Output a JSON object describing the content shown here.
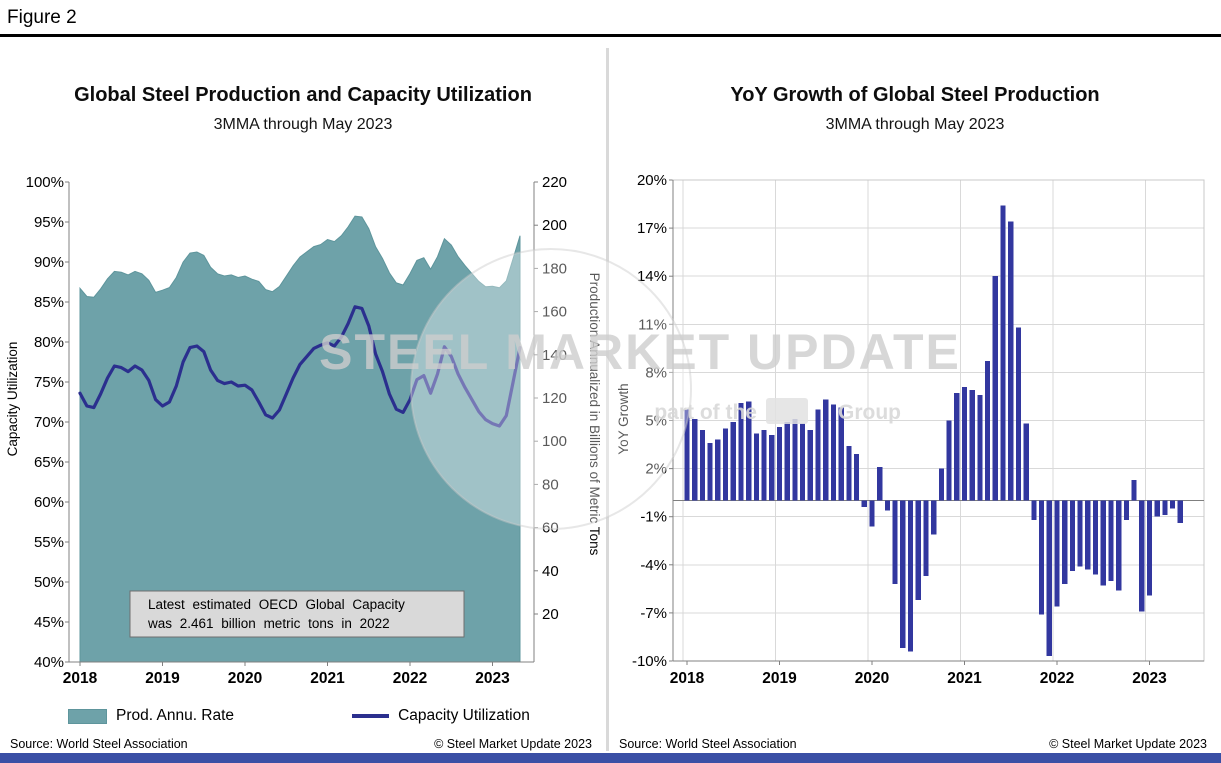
{
  "figure": {
    "label": "Figure 2"
  },
  "footer": {
    "source": "Source: World Steel Association",
    "copyright": "© Steel Market Update 2023"
  },
  "watermark": {
    "text": "STEEL MARKET UPDATE",
    "tagline_prefix": "part of the",
    "tagline_suffix": "Group"
  },
  "colors": {
    "area": "#6EA2A9",
    "area_edge": "#5E959C",
    "line": "#2B2F8E",
    "bar": "#32379F",
    "accent_bar": "#3A4FA5",
    "annotation_bg": "#D9D9D9",
    "annotation_border": "#6E6E6E",
    "grid": "#D9D9D9",
    "axis": "#808080",
    "divider": "#D9D9D9"
  },
  "chart_data": [
    {
      "type": "combo_area_line",
      "title": "Global Steel Production and Capacity Utilization",
      "subtitle": "3MMA through May 2023",
      "x_unit": "month",
      "x_start": "2018-01",
      "x_end": "2023-05",
      "x_tick_labels": [
        "2018",
        "2019",
        "2020",
        "2021",
        "2022",
        "2023"
      ],
      "left_axis": {
        "label": "Capacity Utilization",
        "min": 40,
        "max": 100,
        "tick_step_pct": 5,
        "tick_labels": [
          "100%",
          "95%",
          "90%",
          "85%",
          "80%",
          "75%",
          "70%",
          "65%",
          "60%",
          "55%",
          "50%",
          "45%",
          "40%"
        ]
      },
      "right_axis": {
        "label": "Production Annualized in Billions of Metric Tons",
        "min": 20,
        "max": 220,
        "tick_step": 20,
        "tick_labels": [
          "220",
          "200",
          "180",
          "160",
          "140",
          "120",
          "100",
          "80",
          "60",
          "40",
          "20"
        ]
      },
      "series": [
        {
          "name": "Prod. Annu. Rate",
          "type": "area",
          "axis": "right",
          "color": "#6EA2A9",
          "values": [
            170.8,
            167.0,
            166.6,
            170.5,
            175.2,
            178.6,
            178.2,
            177.0,
            178.6,
            177.5,
            174.5,
            168.9,
            169.9,
            171.1,
            175.8,
            182.9,
            187.1,
            187.6,
            186.0,
            180.5,
            177.5,
            176.5,
            177.0,
            175.8,
            176.5,
            175.0,
            174.0,
            170.2,
            169.2,
            171.6,
            176.4,
            181.2,
            185.3,
            187.7,
            190.1,
            191.0,
            193.4,
            192.4,
            195.1,
            199.2,
            204.2,
            203.8,
            198.4,
            190.0,
            184.6,
            177.9,
            173.3,
            172.3,
            177.6,
            183.7,
            184.9,
            179.6,
            185.4,
            193.7,
            190.8,
            185.4,
            181.3,
            177.6,
            174.0,
            171.5,
            171.7,
            171.0,
            174.2,
            184.5,
            195.1
          ]
        },
        {
          "name": "Capacity Utilization",
          "type": "line",
          "axis": "left",
          "color": "#2B2F8E",
          "values": [
            73.6,
            72.0,
            71.8,
            73.5,
            75.5,
            77.0,
            76.8,
            76.3,
            77.0,
            76.5,
            75.2,
            72.8,
            72.0,
            72.5,
            74.5,
            77.5,
            79.3,
            79.5,
            78.8,
            76.5,
            75.2,
            74.8,
            75.0,
            74.5,
            74.6,
            74.0,
            72.5,
            70.9,
            70.5,
            71.5,
            73.5,
            75.5,
            77.2,
            78.2,
            79.2,
            79.6,
            79.9,
            79.5,
            80.6,
            82.3,
            84.4,
            84.2,
            82.0,
            78.5,
            76.3,
            73.5,
            71.6,
            71.2,
            72.8,
            75.3,
            75.8,
            73.6,
            76.0,
            79.4,
            78.2,
            76.0,
            74.3,
            72.8,
            71.3,
            70.3,
            69.8,
            69.5,
            70.8,
            75.0,
            79.3
          ]
        }
      ],
      "annotation": {
        "line1": "Latest estimated OECD Global Capacity",
        "line2": "was 2.461 billion metric tons in 2022"
      },
      "legend": [
        "Prod. Annu. Rate",
        "Capacity Utilization"
      ],
      "grid": "off",
      "legend_position": "bottom"
    },
    {
      "type": "bar",
      "title": "YoY Growth of Global Steel Production",
      "subtitle": "3MMA through May 2023",
      "ylabel": "YoY Growth",
      "ylim": [
        -10,
        20
      ],
      "y_ticks_pct": [
        20,
        17,
        14,
        11,
        8,
        5,
        2,
        -1,
        -4,
        -7,
        -10
      ],
      "x_unit": "month",
      "x_start": "2018-01",
      "x_end": "2023-05",
      "x_tick_labels": [
        "2018",
        "2019",
        "2020",
        "2021",
        "2022",
        "2023"
      ],
      "bar_color": "#32379F",
      "grid": "on",
      "values": [
        5.7,
        5.1,
        4.4,
        3.6,
        3.8,
        4.5,
        4.9,
        6.1,
        6.2,
        4.2,
        4.4,
        4.1,
        4.6,
        4.9,
        5.1,
        4.8,
        4.4,
        5.7,
        6.3,
        6.0,
        5.8,
        3.4,
        2.9,
        -0.4,
        -1.6,
        2.1,
        -0.6,
        -5.2,
        -9.2,
        -9.4,
        -6.2,
        -4.7,
        -2.1,
        2.0,
        5.0,
        6.7,
        7.1,
        6.9,
        6.6,
        8.7,
        14.0,
        18.4,
        17.4,
        10.8,
        4.8,
        -1.2,
        -7.1,
        -9.7,
        -6.6,
        -5.2,
        -4.4,
        -4.1,
        -4.3,
        -4.6,
        -5.3,
        -5.0,
        -5.6,
        -1.2,
        1.3,
        -6.9,
        -5.9,
        -1.0,
        -0.9,
        -0.5,
        -1.4
      ]
    }
  ]
}
